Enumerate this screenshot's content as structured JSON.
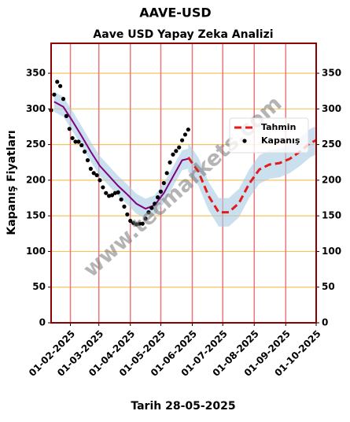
{
  "chart_data": {
    "type": "line",
    "title": "AAVE-USD",
    "subtitle": "Aave USD Yapay Zeka Analizi",
    "xlabel": "Tarih 28-05-2025",
    "ylabel": "Kapanış Fiyatları",
    "watermark": "www.tecmarkets.com",
    "xlim": [
      "2025-01-13",
      "2025-10-01"
    ],
    "xticks": [
      {
        "value": "2025-02-01",
        "label": "01-02-2025"
      },
      {
        "value": "2025-03-01",
        "label": "01-03-2025"
      },
      {
        "value": "2025-04-01",
        "label": "01-04-2025"
      },
      {
        "value": "2025-05-01",
        "label": "01-05-2025"
      },
      {
        "value": "2025-06-01",
        "label": "01-06-2025"
      },
      {
        "value": "2025-07-01",
        "label": "01-07-2025"
      },
      {
        "value": "2025-08-01",
        "label": "01-08-2025"
      },
      {
        "value": "2025-09-01",
        "label": "01-09-2025"
      },
      {
        "value": "2025-10-01",
        "label": "01-10-2025"
      }
    ],
    "ylim": [
      0,
      392
    ],
    "yticks": [
      0,
      50,
      100,
      150,
      200,
      250,
      300,
      350
    ],
    "grid": true,
    "legend": "upper right",
    "series": [
      {
        "name": "Tahmin",
        "color": "#e31a1c",
        "style": "dashed",
        "x": [
          "2025-05-28",
          "2025-06-07",
          "2025-06-17",
          "2025-06-27",
          "2025-07-07",
          "2025-07-17",
          "2025-07-27",
          "2025-08-06",
          "2025-08-16",
          "2025-08-26",
          "2025-09-05",
          "2025-09-15",
          "2025-09-25",
          "2025-10-01"
        ],
        "values": [
          232,
          212,
          178,
          155,
          155,
          168,
          195,
          215,
          222,
          224,
          230,
          240,
          252,
          256
        ],
        "lower": [
          212,
          192,
          158,
          135,
          135,
          148,
          175,
          195,
          202,
          204,
          210,
          220,
          232,
          236
        ],
        "upper": [
          252,
          232,
          198,
          175,
          175,
          188,
          215,
          235,
          242,
          244,
          250,
          260,
          272,
          276
        ]
      },
      {
        "name": "Kapanış",
        "color": "#000000",
        "style": "dots",
        "x": [
          "2025-01-13",
          "2025-01-16",
          "2025-01-19",
          "2025-01-22",
          "2025-01-25",
          "2025-01-28",
          "2025-01-31",
          "2025-02-03",
          "2025-02-06",
          "2025-02-09",
          "2025-02-12",
          "2025-02-15",
          "2025-02-18",
          "2025-02-21",
          "2025-02-24",
          "2025-02-27",
          "2025-03-02",
          "2025-03-05",
          "2025-03-08",
          "2025-03-11",
          "2025-03-14",
          "2025-03-17",
          "2025-03-20",
          "2025-03-23",
          "2025-03-26",
          "2025-03-29",
          "2025-04-01",
          "2025-04-04",
          "2025-04-07",
          "2025-04-10",
          "2025-04-13",
          "2025-04-16",
          "2025-04-19",
          "2025-04-22",
          "2025-04-25",
          "2025-04-28",
          "2025-05-01",
          "2025-05-04",
          "2025-05-07",
          "2025-05-10",
          "2025-05-13",
          "2025-05-16",
          "2025-05-19",
          "2025-05-22",
          "2025-05-25",
          "2025-05-28"
        ],
        "values": [
          298,
          320,
          338,
          332,
          314,
          290,
          272,
          259,
          254,
          254,
          249,
          240,
          228,
          216,
          210,
          207,
          200,
          190,
          182,
          178,
          179,
          182,
          183,
          173,
          163,
          152,
          143,
          140,
          138,
          139,
          139,
          146,
          155,
          161,
          167,
          176,
          184,
          196,
          210,
          225,
          236,
          241,
          246,
          256,
          264,
          271
        ]
      },
      {
        "color": "#800080",
        "style": "solid",
        "x": [
          "2025-01-16",
          "2025-01-25",
          "2025-02-03",
          "2025-02-12",
          "2025-02-21",
          "2025-03-02",
          "2025-03-11",
          "2025-03-20",
          "2025-03-29",
          "2025-04-07",
          "2025-04-16",
          "2025-04-25",
          "2025-05-04",
          "2025-05-13",
          "2025-05-22",
          "2025-05-28"
        ],
        "values": [
          310,
          303,
          283,
          262,
          240,
          220,
          206,
          192,
          180,
          167,
          160,
          165,
          182,
          205,
          228,
          230
        ],
        "lower": [
          296,
          289,
          269,
          248,
          226,
          206,
          192,
          178,
          166,
          153,
          146,
          151,
          168,
          191,
          214,
          216
        ],
        "upper": [
          324,
          317,
          297,
          276,
          254,
          234,
          220,
          206,
          194,
          181,
          174,
          179,
          196,
          219,
          242,
          244
        ]
      }
    ]
  }
}
